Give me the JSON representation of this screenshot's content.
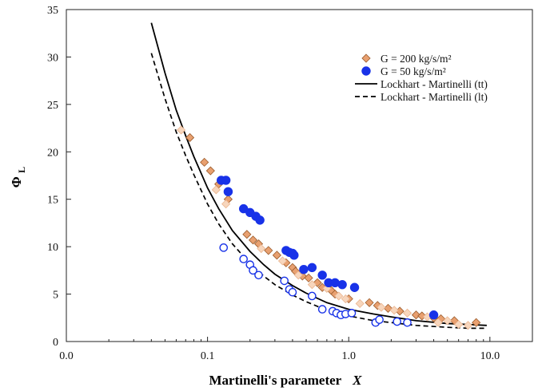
{
  "chart_data": {
    "type": "scatter",
    "x_scale": "log",
    "xlim": [
      0.01,
      20
    ],
    "ylim": [
      0,
      35
    ],
    "xlabel_main": "Martinelli's parameter",
    "xlabel_var": "X",
    "ylabel_main": "Φ",
    "ylabel_sub": "L",
    "x_ticks": [
      {
        "value": 0.01,
        "label": "0.0"
      },
      {
        "value": 0.1,
        "label": "0.1"
      },
      {
        "value": 1,
        "label": "1.0"
      },
      {
        "value": 10,
        "label": "10.0"
      }
    ],
    "y_ticks": [
      0,
      5,
      10,
      15,
      20,
      25,
      30,
      35
    ],
    "grid": false,
    "legend_position": "top-right",
    "series": [
      {
        "name": "G = 200 kg/s/m²",
        "marker": "diamond-filled",
        "color": "#E8A070",
        "stroke": "#9a5a2a",
        "points": [
          [
            0.075,
            21.5
          ],
          [
            0.095,
            18.9
          ],
          [
            0.105,
            18.0
          ],
          [
            0.12,
            16.6
          ],
          [
            0.14,
            15.0
          ],
          [
            0.19,
            11.3
          ],
          [
            0.21,
            10.7
          ],
          [
            0.23,
            10.3
          ],
          [
            0.27,
            9.6
          ],
          [
            0.31,
            9.1
          ],
          [
            0.36,
            8.3
          ],
          [
            0.4,
            7.8
          ],
          [
            0.42,
            7.4
          ],
          [
            0.47,
            6.9
          ],
          [
            0.52,
            6.7
          ],
          [
            0.6,
            6.2
          ],
          [
            0.65,
            5.7
          ],
          [
            0.75,
            5.4
          ],
          [
            0.8,
            5.0
          ],
          [
            1.0,
            4.5
          ],
          [
            1.4,
            4.1
          ],
          [
            1.6,
            3.8
          ],
          [
            1.9,
            3.5
          ],
          [
            2.3,
            3.2
          ],
          [
            3.0,
            2.8
          ],
          [
            3.3,
            2.7
          ],
          [
            4.0,
            2.5
          ],
          [
            4.5,
            2.4
          ],
          [
            5.6,
            2.2
          ],
          [
            8.0,
            2.0
          ]
        ]
      },
      {
        "name": "",
        "marker": "diamond-open",
        "color": "#F7D6BD",
        "stroke": "#EBB58F",
        "points": [
          [
            0.065,
            22.3
          ],
          [
            0.115,
            16.0
          ],
          [
            0.135,
            14.5
          ],
          [
            0.24,
            9.8
          ],
          [
            0.34,
            8.5
          ],
          [
            0.44,
            7.0
          ],
          [
            0.55,
            6.0
          ],
          [
            0.7,
            5.6
          ],
          [
            0.85,
            4.8
          ],
          [
            0.95,
            4.5
          ],
          [
            1.2,
            4.0
          ],
          [
            1.7,
            3.6
          ],
          [
            2.1,
            3.3
          ],
          [
            2.6,
            3.0
          ],
          [
            3.6,
            2.6
          ],
          [
            4.3,
            2.0
          ],
          [
            5.0,
            2.2
          ],
          [
            6.0,
            1.8
          ],
          [
            7.0,
            1.7
          ]
        ]
      },
      {
        "name": "G = 50 kg/s/m²",
        "marker": "circle-filled",
        "color": "#1832E8",
        "stroke": "#1832E8",
        "points": [
          [
            0.125,
            17.0
          ],
          [
            0.135,
            17.0
          ],
          [
            0.14,
            15.8
          ],
          [
            0.18,
            14.0
          ],
          [
            0.2,
            13.6
          ],
          [
            0.22,
            13.2
          ],
          [
            0.235,
            12.8
          ],
          [
            0.36,
            9.6
          ],
          [
            0.38,
            9.4
          ],
          [
            0.4,
            9.3
          ],
          [
            0.41,
            9.1
          ],
          [
            0.48,
            7.6
          ],
          [
            0.55,
            7.8
          ],
          [
            0.65,
            7.0
          ],
          [
            0.72,
            6.2
          ],
          [
            0.8,
            6.2
          ],
          [
            0.9,
            6.0
          ],
          [
            1.1,
            5.7
          ],
          [
            4.0,
            2.8
          ]
        ]
      },
      {
        "name": "",
        "marker": "circle-open",
        "color": "#ffffff",
        "stroke": "#1832E8",
        "points": [
          [
            0.13,
            9.9
          ],
          [
            0.18,
            8.7
          ],
          [
            0.2,
            8.1
          ],
          [
            0.21,
            7.5
          ],
          [
            0.23,
            7.0
          ],
          [
            0.35,
            6.4
          ],
          [
            0.38,
            5.5
          ],
          [
            0.4,
            5.2
          ],
          [
            0.55,
            4.8
          ],
          [
            0.65,
            3.4
          ],
          [
            0.77,
            3.2
          ],
          [
            0.82,
            3.0
          ],
          [
            0.88,
            2.8
          ],
          [
            0.95,
            2.9
          ],
          [
            1.05,
            3.0
          ],
          [
            1.55,
            2.0
          ],
          [
            1.65,
            2.3
          ],
          [
            2.2,
            2.1
          ],
          [
            2.6,
            2.0
          ]
        ]
      },
      {
        "name": "Lockhart - Martinelli (tt)",
        "type": "line",
        "style": "solid",
        "color": "#000000",
        "points": [
          [
            0.04,
            33.6
          ],
          [
            0.05,
            28.3
          ],
          [
            0.06,
            24.4
          ],
          [
            0.07,
            21.7
          ],
          [
            0.08,
            19.5
          ],
          [
            0.1,
            16.2
          ],
          [
            0.12,
            14.0
          ],
          [
            0.15,
            11.7
          ],
          [
            0.2,
            9.5
          ],
          [
            0.25,
            8.1
          ],
          [
            0.3,
            7.1
          ],
          [
            0.4,
            5.9
          ],
          [
            0.5,
            5.1
          ],
          [
            0.7,
            4.1
          ],
          [
            1.0,
            3.4
          ],
          [
            1.5,
            2.9
          ],
          [
            2.0,
            2.6
          ],
          [
            3.0,
            2.2
          ],
          [
            5.0,
            1.9
          ],
          [
            7.0,
            1.8
          ],
          [
            9.5,
            1.7
          ]
        ]
      },
      {
        "name": "Lockhart - Martinelli (lt)",
        "type": "line",
        "style": "dashed",
        "color": "#000000",
        "points": [
          [
            0.04,
            30.4
          ],
          [
            0.05,
            25.6
          ],
          [
            0.06,
            22.1
          ],
          [
            0.07,
            19.6
          ],
          [
            0.08,
            17.6
          ],
          [
            0.1,
            14.5
          ],
          [
            0.12,
            12.4
          ],
          [
            0.15,
            10.3
          ],
          [
            0.2,
            8.2
          ],
          [
            0.25,
            6.9
          ],
          [
            0.3,
            6.0
          ],
          [
            0.4,
            4.9
          ],
          [
            0.5,
            4.2
          ],
          [
            0.7,
            3.3
          ],
          [
            1.0,
            2.7
          ],
          [
            1.5,
            2.2
          ],
          [
            2.0,
            2.0
          ],
          [
            3.0,
            1.7
          ],
          [
            5.0,
            1.5
          ],
          [
            7.0,
            1.4
          ],
          [
            9.5,
            1.4
          ]
        ]
      }
    ],
    "legend": [
      {
        "label": "G = 200 kg/s/m²",
        "marker": "diamond-filled",
        "color": "#E8A070",
        "stroke": "#9a5a2a"
      },
      {
        "label": "G = 50 kg/s/m²",
        "marker": "circle-filled",
        "color": "#1832E8",
        "stroke": "#1832E8"
      },
      {
        "label": "Lockhart - Martinelli (tt)",
        "marker": "line-solid",
        "color": "#000000",
        "stroke": "#000000"
      },
      {
        "label": "Lockhart - Martinelli (lt)",
        "marker": "line-dashed",
        "color": "#000000",
        "stroke": "#000000"
      }
    ]
  }
}
